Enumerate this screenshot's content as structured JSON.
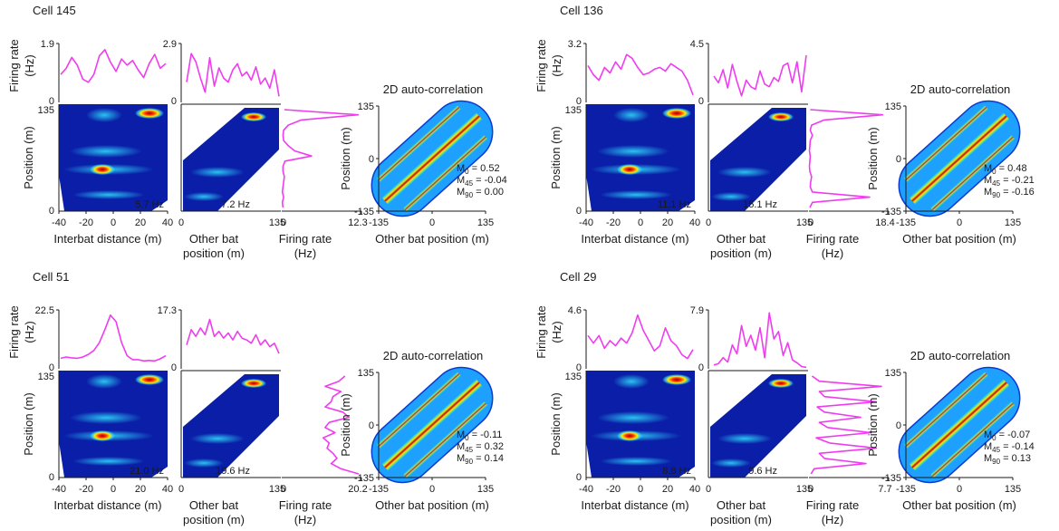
{
  "colors": {
    "trace": "#f03cf0",
    "map_low": "#00008f",
    "map_high": "#8b0000"
  },
  "chart_data": [
    {
      "type": "heatmap",
      "cell": "Cell 145",
      "tuning_yticks": [
        "1.9",
        "0"
      ],
      "other_yticks": [
        "2.9",
        "0"
      ],
      "pos_label": "Position (m)",
      "pos_ticks": [
        "135",
        "0"
      ],
      "dist_ticks": [
        "-40",
        "-20",
        "0",
        "20",
        "40"
      ],
      "dist_label": "Interbat distance (m)",
      "other_label": [
        "Other bat",
        "position (m)"
      ],
      "other_ticks": [
        "0",
        "135"
      ],
      "rate_ticks": [
        "0",
        "12.3"
      ],
      "rate_label": [
        "Firing rate",
        "(Hz)"
      ],
      "fr_label": [
        "Firing rate",
        "(Hz)"
      ],
      "peak_dist": "5.7 Hz",
      "peak_other": "7.2 Hz",
      "tuning_dist": [
        0.9,
        1.1,
        1.45,
        1.2,
        0.75,
        0.65,
        0.9,
        1.5,
        1.7,
        1.3,
        1.0,
        1.4,
        1.2,
        1.35,
        1.05,
        0.8,
        1.25,
        1.55,
        1.1,
        1.25
      ],
      "tuning_other": [
        1.0,
        2.4,
        2.0,
        1.2,
        0.5,
        2.2,
        0.8,
        1.7,
        1.2,
        1.0,
        1.6,
        1.9,
        1.3,
        1.5,
        1.1,
        1.75,
        0.9,
        1.2,
        0.7,
        1.6,
        0.3
      ],
      "position_profile": [
        0.4,
        11.8,
        3.0,
        1.0,
        0.3,
        0.2,
        0.3,
        1.0,
        2.0,
        4.6,
        0.5,
        0.2,
        0.2,
        0.4,
        0.3,
        0.2,
        0.1,
        0.3,
        0.1,
        0.2
      ],
      "autocorr": {
        "title": "2D auto-correlation",
        "ylabel": "Position (m)",
        "xlabel": "Other bat position (m)",
        "ticks": [
          "-135",
          "0",
          "135"
        ],
        "M0": "M0 = 0.52",
        "M45": "M45 = -0.04",
        "M90": "M90 = 0.00"
      }
    },
    {
      "type": "heatmap",
      "cell": "Cell 136",
      "tuning_yticks": [
        "3.2",
        "0"
      ],
      "other_yticks": [
        "4.5",
        "0"
      ],
      "pos_label": "Position (m)",
      "pos_ticks": [
        "135",
        "0"
      ],
      "dist_ticks": [
        "-40",
        "-20",
        "0",
        "20",
        "40"
      ],
      "dist_label": "Interbat distance (m)",
      "other_label": [
        "Other bat",
        "position (m)"
      ],
      "other_ticks": [
        "0",
        "135"
      ],
      "rate_ticks": [
        "0",
        "18.4"
      ],
      "rate_label": [
        "Firing rate",
        "(Hz)"
      ],
      "fr_label": [
        "Firing rate",
        "(Hz)"
      ],
      "peak_dist": "11.1 Hz",
      "peak_other": "15.1 Hz",
      "tuning_dist": [
        2.0,
        1.5,
        1.2,
        1.9,
        1.6,
        2.2,
        1.8,
        2.6,
        2.4,
        1.9,
        1.5,
        1.6,
        1.8,
        1.9,
        1.7,
        2.1,
        1.9,
        1.7,
        1.2,
        0.4
      ],
      "tuning_other": [
        2.0,
        1.5,
        2.5,
        1.1,
        2.9,
        1.6,
        0.5,
        1.7,
        1.2,
        1.0,
        2.4,
        1.4,
        1.2,
        1.9,
        1.6,
        2.8,
        3.0,
        1.5,
        3.1,
        0.8,
        3.6
      ],
      "position_profile": [
        0.3,
        17.0,
        3.5,
        0.6,
        0.3,
        0.8,
        0.3,
        0.2,
        0.1,
        0.3,
        0.2,
        0.1,
        0.2,
        0.6,
        0.4,
        0.3,
        0.8,
        14.0,
        0.8,
        0.2
      ],
      "autocorr": {
        "title": "2D auto-correlation",
        "ylabel": "Position (m)",
        "xlabel": "Other bat position (m)",
        "ticks": [
          "-135",
          "0",
          "135"
        ],
        "M0": "M0 = 0.48",
        "M45": "M45 = -0.21",
        "M90": "M90 = -0.16"
      }
    },
    {
      "type": "heatmap",
      "cell": "Cell 51",
      "tuning_yticks": [
        "22.5",
        "0"
      ],
      "other_yticks": [
        "17.3",
        "0"
      ],
      "pos_label": "Position (m)",
      "pos_ticks": [
        "135",
        "0"
      ],
      "dist_ticks": [
        "-40",
        "-20",
        "0",
        "20",
        "40"
      ],
      "dist_label": "Interbat distance (m)",
      "other_label": [
        "Other bat",
        "position (m)"
      ],
      "other_ticks": [
        "0",
        "135"
      ],
      "rate_ticks": [
        "0",
        "20.2"
      ],
      "rate_label": [
        "Firing rate",
        "(Hz)"
      ],
      "fr_label": [
        "Firing rate",
        "(Hz)"
      ],
      "peak_dist": "21.0 Hz",
      "peak_other": "19.6 Hz",
      "tuning_dist": [
        4.0,
        4.5,
        4.2,
        4.0,
        4.5,
        5.5,
        7.0,
        10.0,
        15.0,
        20.5,
        18.0,
        10.0,
        5.0,
        3.5,
        3.5,
        3.0,
        3.2,
        3.0,
        3.8,
        5.0
      ],
      "tuning_other": [
        7.0,
        11.5,
        9.5,
        12.0,
        10.0,
        14.5,
        9.5,
        11.0,
        9.0,
        10.5,
        8.5,
        11.0,
        9.0,
        8.5,
        7.5,
        10.0,
        7.0,
        8.5,
        6.5,
        7.5,
        4.5
      ],
      "position_profile": [
        16.0,
        14.5,
        11.0,
        15.0,
        13.0,
        12.5,
        11.0,
        15.5,
        17.0,
        12.0,
        11.0,
        13.5,
        10.5,
        12.0,
        11.5,
        13.0,
        14.0,
        12.5,
        15.0,
        19.5
      ],
      "autocorr": {
        "title": "2D auto-correlation",
        "ylabel": "Position (m)",
        "xlabel": "Other bat position (m)",
        "ticks": [
          "-135",
          "0",
          "135"
        ],
        "M0": "M0 = -0.11",
        "M45": "M45 = 0.32",
        "M90": "M90 = 0.14"
      }
    },
    {
      "type": "heatmap",
      "cell": "Cell 29",
      "tuning_yticks": [
        "4.6",
        "0"
      ],
      "other_yticks": [
        "7.9",
        "0"
      ],
      "pos_label": "Position (m)",
      "pos_ticks": [
        "135",
        "0"
      ],
      "dist_ticks": [
        "-40",
        "-20",
        "0",
        "20",
        "40"
      ],
      "dist_label": "Interbat distance (m)",
      "other_label": [
        "Other bat",
        "position (m)"
      ],
      "other_ticks": [
        "0",
        "135"
      ],
      "rate_ticks": [
        "0",
        "7.7"
      ],
      "rate_label": [
        "Firing rate",
        "(Hz)"
      ],
      "fr_label": [
        "Firing rate",
        "(Hz)"
      ],
      "peak_dist": "8.8 Hz",
      "peak_other": "9.6 Hz",
      "tuning_dist": [
        2.6,
        2.0,
        2.6,
        1.6,
        2.2,
        1.8,
        2.4,
        2.0,
        2.8,
        4.2,
        3.0,
        2.2,
        1.4,
        1.8,
        3.2,
        2.2,
        1.8,
        1.1,
        0.8,
        1.5
      ],
      "tuning_other": [
        0.5,
        0.7,
        1.5,
        0.9,
        3.2,
        2.0,
        5.8,
        3.0,
        4.5,
        2.5,
        5.5,
        1.5,
        7.5,
        4.0,
        5.0,
        1.8,
        3.5,
        1.2,
        0.8,
        0.3,
        0.2
      ],
      "position_profile": [
        0.3,
        1.0,
        7.0,
        1.0,
        1.5,
        6.5,
        0.8,
        1.5,
        5.0,
        1.0,
        1.8,
        6.0,
        0.7,
        2.0,
        6.5,
        1.0,
        1.5,
        5.5,
        0.5,
        0.2
      ],
      "autocorr": {
        "title": "2D auto-correlation",
        "ylabel": "Position (m)",
        "xlabel": "Other bat position (m)",
        "ticks": [
          "-135",
          "0",
          "135"
        ],
        "M0": "M0 = -0.07",
        "M45": "M45 = -0.14",
        "M90": "M90 = 0.13"
      }
    }
  ]
}
